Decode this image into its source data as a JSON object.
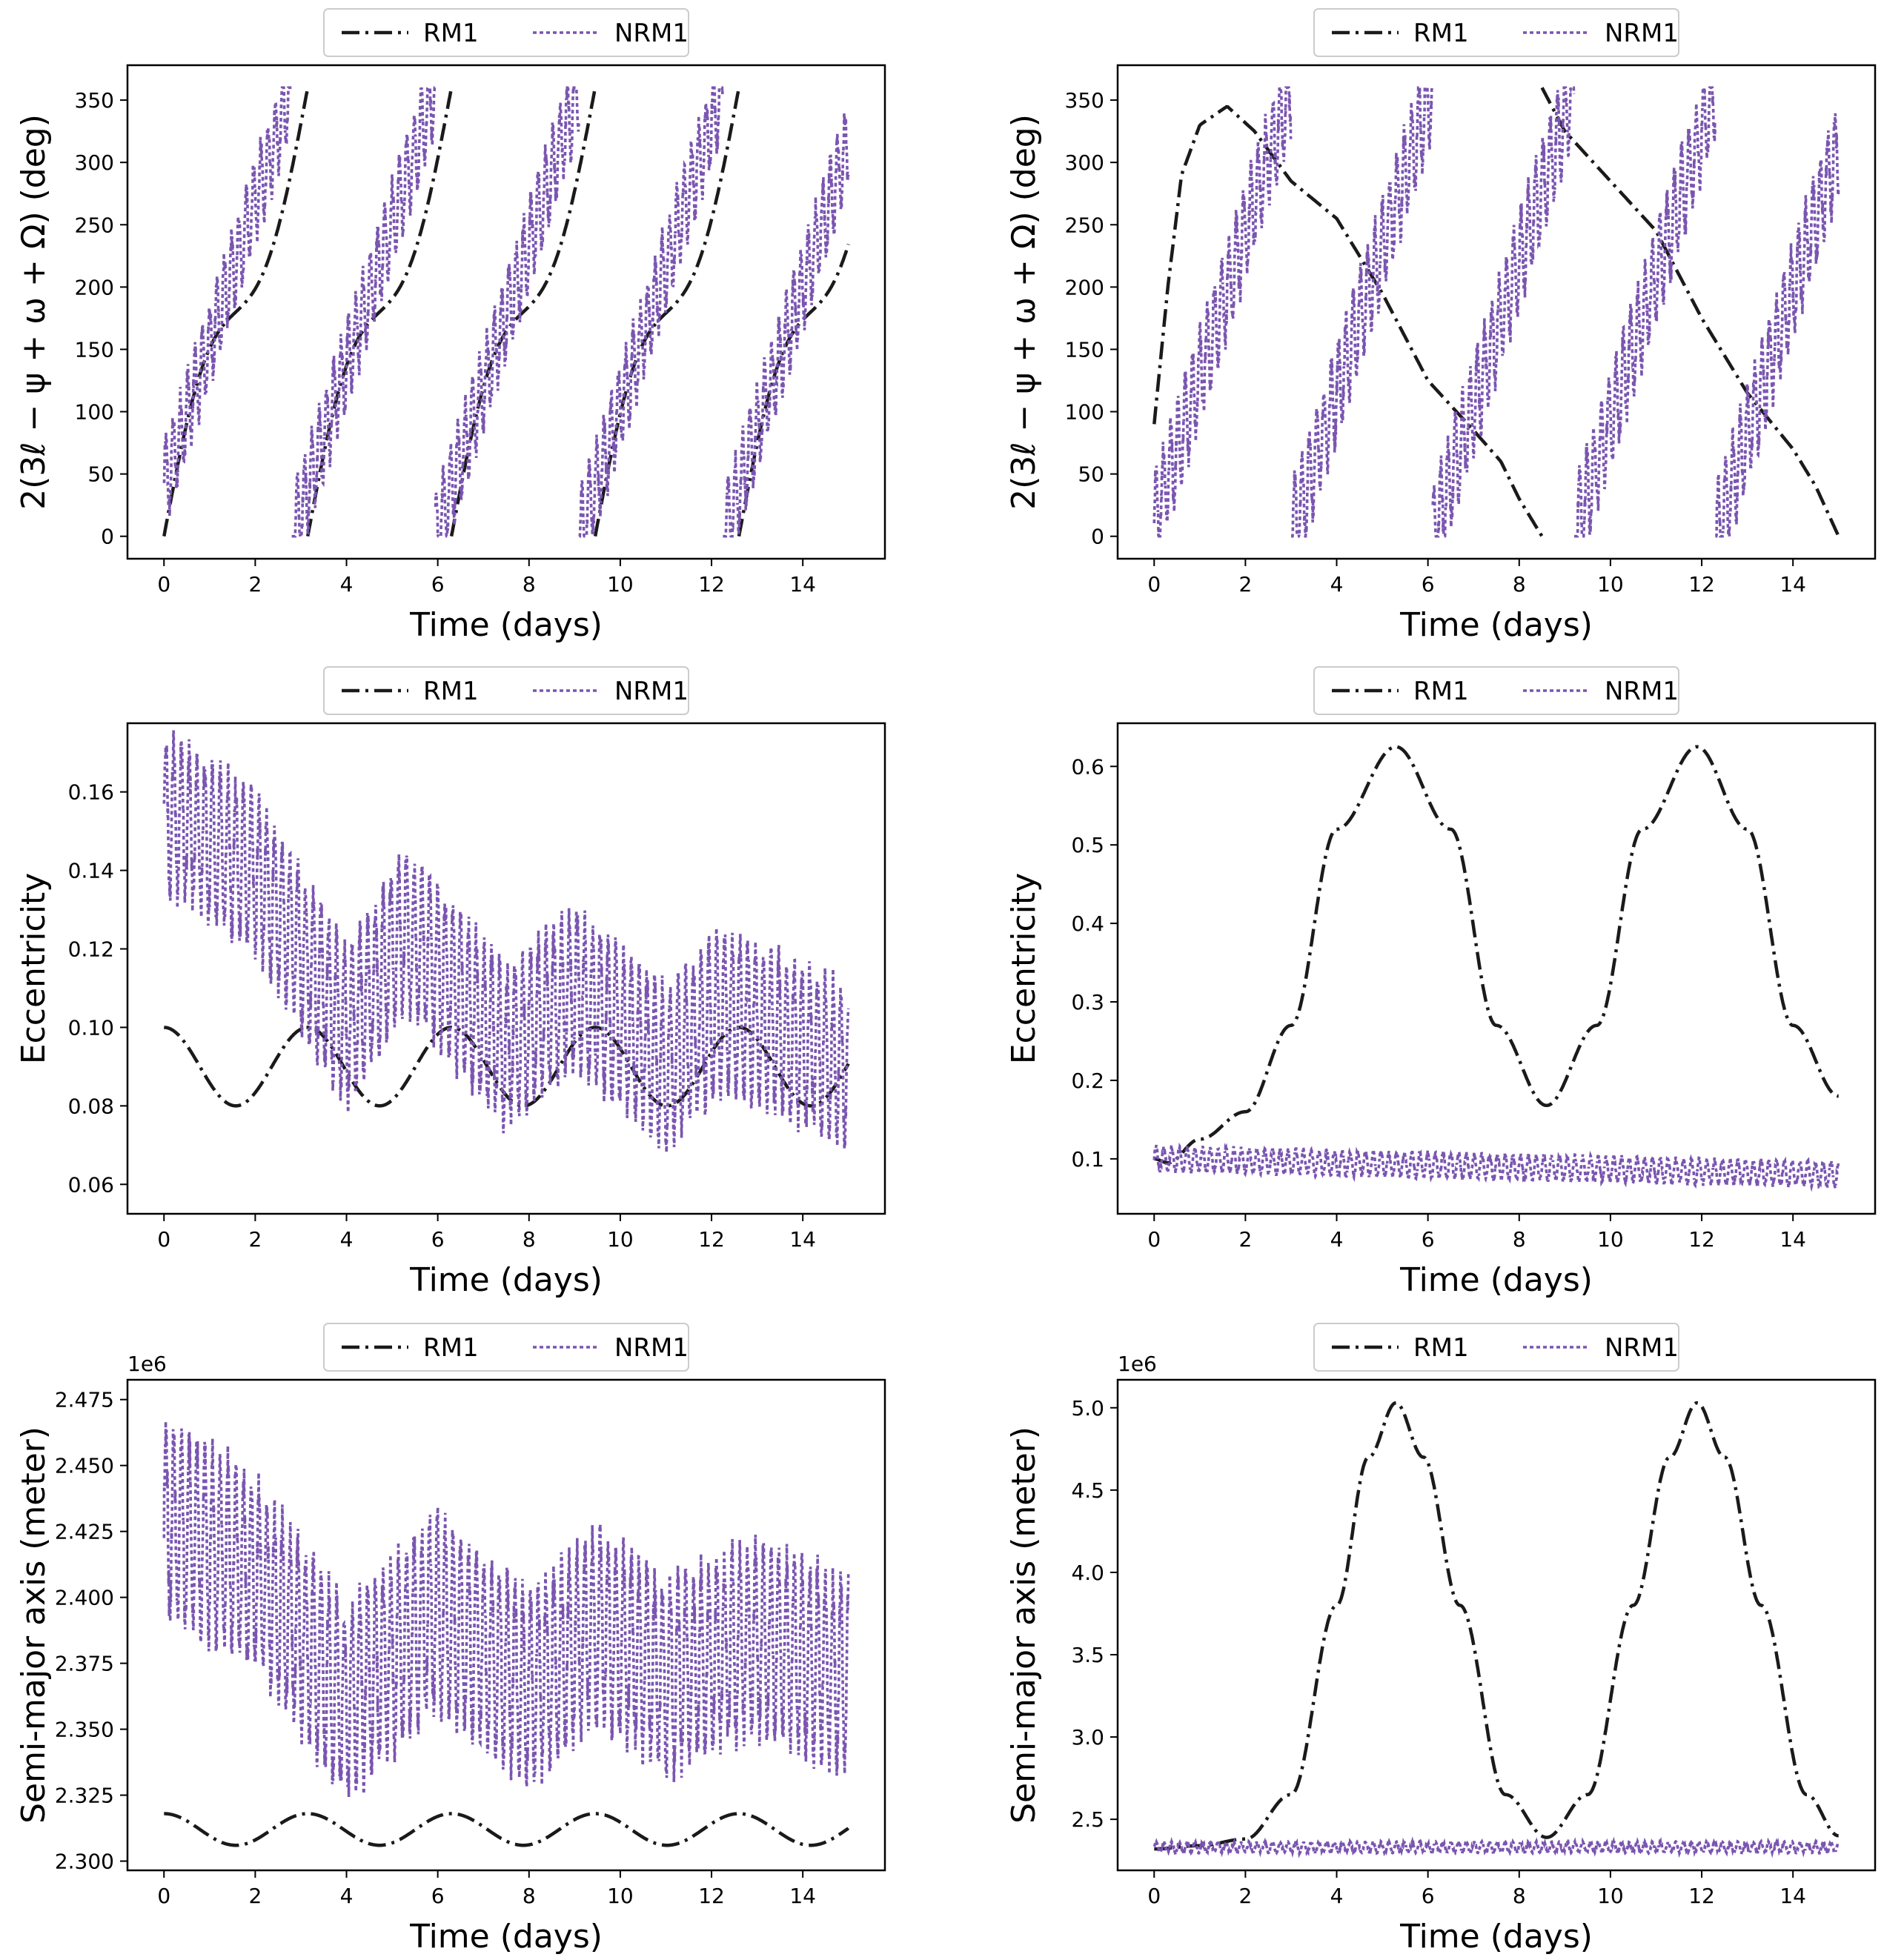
{
  "figure": {
    "background": "#ffffff",
    "series_styles": {
      "RM1": {
        "color": "#1a1a1a",
        "dash": "dash-dot"
      },
      "NRM1": {
        "color": "#7a55b0",
        "dash": "dotted"
      }
    }
  },
  "chart_data": [
    {
      "id": "angle-rm1",
      "type": "line",
      "title": "",
      "xlabel": "Time (days)",
      "ylabel": "2(3ℓ − ψ + ω + Ω) (deg)",
      "xlim": [
        -0.8,
        15.8
      ],
      "ylim": [
        -18,
        378
      ],
      "xticks": [
        0,
        2,
        4,
        6,
        8,
        10,
        12,
        14
      ],
      "yticks": [
        0,
        50,
        100,
        150,
        200,
        250,
        300,
        350
      ],
      "ytick_labels": [
        "0",
        "50",
        "100",
        "150",
        "200",
        "250",
        "300",
        "350"
      ],
      "offset_text": "",
      "legend": {
        "placement": "top-center-outside",
        "entries": [
          "RM1",
          "NRM1"
        ]
      },
      "series": [
        {
          "name": "RM1",
          "kind": "phase",
          "start": 0,
          "period": 3.15,
          "wrap": 360,
          "offset": 0
        },
        {
          "name": "NRM1",
          "kind": "noisy-phase",
          "period": 3.15,
          "wrap": 360,
          "amp": 45,
          "fastPeriod": 0.16,
          "lag": 0.35
        }
      ]
    },
    {
      "id": "angle-nrm1",
      "type": "line",
      "title": "",
      "xlabel": "Time (days)",
      "ylabel": "2(3ℓ − ψ + ω + Ω) (deg)",
      "xlim": [
        -0.8,
        15.8
      ],
      "ylim": [
        -18,
        378
      ],
      "xticks": [
        0,
        2,
        4,
        6,
        8,
        10,
        12,
        14
      ],
      "yticks": [
        0,
        50,
        100,
        150,
        200,
        250,
        300,
        350
      ],
      "ytick_labels": [
        "0",
        "50",
        "100",
        "150",
        "200",
        "250",
        "300",
        "350"
      ],
      "offset_text": "",
      "legend": {
        "placement": "top-center-outside",
        "entries": [
          "RM1",
          "NRM1"
        ]
      },
      "series": [
        {
          "name": "RM1",
          "kind": "libration",
          "points": [
            [
              0,
              90
            ],
            [
              0.3,
              200
            ],
            [
              0.6,
              290
            ],
            [
              1,
              330
            ],
            [
              1.6,
              345
            ],
            [
              2.2,
              325
            ],
            [
              3,
              285
            ],
            [
              4,
              255
            ],
            [
              5,
              195
            ],
            [
              6,
              125
            ],
            [
              7,
              85
            ],
            [
              7.6,
              60
            ],
            [
              8,
              30
            ],
            [
              8.5,
              0
            ],
            [
              8.5,
              360
            ],
            [
              9,
              325
            ],
            [
              10,
              285
            ],
            [
              11,
              245
            ],
            [
              12,
              175
            ],
            [
              13,
              115
            ],
            [
              14,
              70
            ],
            [
              14.5,
              40
            ],
            [
              15,
              0
            ],
            [
              15,
              360
            ]
          ]
        },
        {
          "name": "NRM1",
          "kind": "noisy-phase",
          "period": 3.1,
          "wrap": 360,
          "amp": 50,
          "fastPeriod": 0.16,
          "lag": 0.1
        }
      ]
    },
    {
      "id": "ecc-rm1",
      "type": "line",
      "title": "",
      "xlabel": "Time (days)",
      "ylabel": "Eccentricity",
      "xlim": [
        -0.8,
        15.8
      ],
      "ylim": [
        0.0525,
        0.1775
      ],
      "xticks": [
        0,
        2,
        4,
        6,
        8,
        10,
        12,
        14
      ],
      "yticks": [
        0.06,
        0.08,
        0.1,
        0.12,
        0.14,
        0.16
      ],
      "ytick_labels": [
        "0.06",
        "0.08",
        "0.10",
        "0.12",
        "0.14",
        "0.16"
      ],
      "offset_text": "",
      "legend": {
        "placement": "top-center-outside",
        "entries": [
          "RM1",
          "NRM1"
        ]
      },
      "series": [
        {
          "name": "RM1",
          "kind": "sine",
          "mean": 0.09,
          "amp": 0.01,
          "period": 3.15,
          "phase": 0
        },
        {
          "name": "NRM1",
          "kind": "noisy-envelope",
          "center": [
            [
              0,
              0.155
            ],
            [
              2,
              0.14
            ],
            [
              4,
              0.1
            ],
            [
              5.3,
              0.125
            ],
            [
              7.5,
              0.095
            ],
            [
              9,
              0.11
            ],
            [
              11,
              0.09
            ],
            [
              12.3,
              0.105
            ],
            [
              15,
              0.09
            ]
          ],
          "amp": 0.025,
          "fastPeriod": 0.17
        }
      ]
    },
    {
      "id": "ecc-nrm1",
      "type": "line",
      "title": "",
      "xlabel": "Time (days)",
      "ylabel": "Eccentricity",
      "xlim": [
        -0.8,
        15.8
      ],
      "ylim": [
        0.03,
        0.655
      ],
      "xticks": [
        0,
        2,
        4,
        6,
        8,
        10,
        12,
        14
      ],
      "yticks": [
        0.1,
        0.2,
        0.3,
        0.4,
        0.5,
        0.6
      ],
      "ytick_labels": [
        "0.1",
        "0.2",
        "0.3",
        "0.4",
        "0.5",
        "0.6"
      ],
      "offset_text": "",
      "legend": {
        "placement": "top-center-outside",
        "entries": [
          "RM1",
          "NRM1"
        ]
      },
      "series": [
        {
          "name": "RM1",
          "kind": "points",
          "points": [
            [
              0,
              0.1
            ],
            [
              0.3,
              0.095
            ],
            [
              1,
              0.125
            ],
            [
              2,
              0.16
            ],
            [
              3,
              0.27
            ],
            [
              4,
              0.52
            ],
            [
              5.3,
              0.625
            ],
            [
              6.5,
              0.52
            ],
            [
              7.5,
              0.27
            ],
            [
              8.6,
              0.168
            ],
            [
              9.7,
              0.27
            ],
            [
              10.7,
              0.52
            ],
            [
              11.9,
              0.625
            ],
            [
              13,
              0.52
            ],
            [
              14,
              0.27
            ],
            [
              15,
              0.18
            ]
          ]
        },
        {
          "name": "NRM1",
          "kind": "noisy-envelope",
          "center": [
            [
              0,
              0.1
            ],
            [
              15,
              0.08
            ]
          ],
          "amp": 0.02,
          "fastPeriod": 0.17
        }
      ]
    },
    {
      "id": "sma-rm1",
      "type": "line",
      "title": "",
      "xlabel": "Time (days)",
      "ylabel": "Semi-major axis (meter)",
      "xlim": [
        -0.8,
        15.8
      ],
      "ylim": [
        2.2965,
        2.4825
      ],
      "xticks": [
        0,
        2,
        4,
        6,
        8,
        10,
        12,
        14
      ],
      "yticks": [
        2.3,
        2.325,
        2.35,
        2.375,
        2.4,
        2.425,
        2.45,
        2.475
      ],
      "ytick_labels": [
        "2.300",
        "2.325",
        "2.350",
        "2.375",
        "2.400",
        "2.425",
        "2.450",
        "2.475"
      ],
      "offset_text": "1e6",
      "legend": {
        "placement": "top-center-outside",
        "entries": [
          "RM1",
          "NRM1"
        ]
      },
      "series": [
        {
          "name": "RM1",
          "kind": "sine",
          "mean": 2.312,
          "amp": 0.006,
          "period": 3.15,
          "phase": 0
        },
        {
          "name": "NRM1",
          "kind": "noisy-envelope",
          "center": [
            [
              0,
              2.43
            ],
            [
              2,
              2.41
            ],
            [
              4,
              2.36
            ],
            [
              6,
              2.395
            ],
            [
              8,
              2.365
            ],
            [
              9.5,
              2.39
            ],
            [
              11,
              2.37
            ],
            [
              13,
              2.385
            ],
            [
              15,
              2.37
            ]
          ],
          "amp": 0.045,
          "fastPeriod": 0.17
        }
      ]
    },
    {
      "id": "sma-nrm1",
      "type": "line",
      "title": "",
      "xlabel": "Time (days)",
      "ylabel": "Semi-major axis (meter)",
      "xlim": [
        -0.8,
        15.8
      ],
      "ylim": [
        2.19,
        5.17
      ],
      "xticks": [
        0,
        2,
        4,
        6,
        8,
        10,
        12,
        14
      ],
      "yticks": [
        2.5,
        3.0,
        3.5,
        4.0,
        4.5,
        5.0
      ],
      "ytick_labels": [
        "2.5",
        "3.0",
        "3.5",
        "4.0",
        "4.5",
        "5.0"
      ],
      "offset_text": "1e6",
      "legend": {
        "placement": "top-center-outside",
        "entries": [
          "RM1",
          "NRM1"
        ]
      },
      "series": [
        {
          "name": "RM1",
          "kind": "points",
          "points": [
            [
              0,
              2.32
            ],
            [
              1,
              2.34
            ],
            [
              2,
              2.38
            ],
            [
              3,
              2.65
            ],
            [
              4,
              3.8
            ],
            [
              4.7,
              4.7
            ],
            [
              5.3,
              5.03
            ],
            [
              5.9,
              4.7
            ],
            [
              6.7,
              3.8
            ],
            [
              7.7,
              2.65
            ],
            [
              8.6,
              2.39
            ],
            [
              9.5,
              2.65
            ],
            [
              10.5,
              3.8
            ],
            [
              11.3,
              4.7
            ],
            [
              11.9,
              5.03
            ],
            [
              12.5,
              4.7
            ],
            [
              13.3,
              3.8
            ],
            [
              14.3,
              2.65
            ],
            [
              15,
              2.4
            ]
          ]
        },
        {
          "name": "NRM1",
          "kind": "noisy-envelope",
          "center": [
            [
              0,
              2.33
            ],
            [
              15,
              2.33
            ]
          ],
          "amp": 0.04,
          "fastPeriod": 0.17
        }
      ]
    }
  ]
}
